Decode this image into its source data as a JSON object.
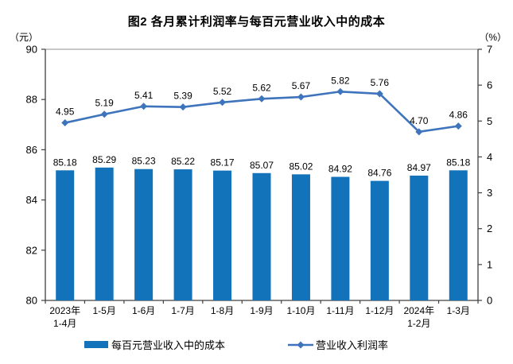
{
  "title": "图2 各月累计利润率与每百元营业收入中的成本",
  "chart_data": {
    "type": "combo-bar-line",
    "title": "图2 各月累计利润率与每百元营业收入中的成本",
    "categories": [
      "2023年1-4月",
      "1-5月",
      "1-6月",
      "1-7月",
      "1-8月",
      "1-9月",
      "1-10月",
      "1-11月",
      "1-12月",
      "2024年1-2月",
      "1-3月"
    ],
    "category_label_lines": [
      [
        "2023年",
        "1-4月"
      ],
      [
        "1-5月"
      ],
      [
        "1-6月"
      ],
      [
        "1-7月"
      ],
      [
        "1-8月"
      ],
      [
        "1-9月"
      ],
      [
        "1-10月"
      ],
      [
        "1-11月"
      ],
      [
        "1-12月"
      ],
      [
        "2024年",
        "1-2月"
      ],
      [
        "1-3月"
      ]
    ],
    "series": [
      {
        "name": "每百元营业收入中的成本",
        "type": "bar",
        "axis": "left",
        "color": "#1272BA",
        "values": [
          85.18,
          85.29,
          85.23,
          85.22,
          85.17,
          85.07,
          85.02,
          84.92,
          84.76,
          84.97,
          85.18
        ]
      },
      {
        "name": "营业收入利润率",
        "type": "line",
        "axis": "right",
        "color": "#3E74BC",
        "values": [
          4.95,
          5.19,
          5.41,
          5.39,
          5.52,
          5.62,
          5.67,
          5.82,
          5.76,
          4.7,
          4.86
        ]
      }
    ],
    "left_axis": {
      "unit": "（元）",
      "min": 80,
      "max": 90,
      "step": 2,
      "ticks": [
        80,
        82,
        84,
        86,
        88,
        90
      ]
    },
    "right_axis": {
      "unit": "（%）",
      "min": 0,
      "max": 7,
      "step": 1,
      "ticks": [
        0,
        1,
        2,
        3,
        4,
        5,
        6,
        7
      ]
    },
    "grid": false,
    "legend_position": "bottom",
    "label_color": "#000000",
    "axis_line_color": "#404040",
    "plot_top_border_color": "#A6A6A6"
  }
}
